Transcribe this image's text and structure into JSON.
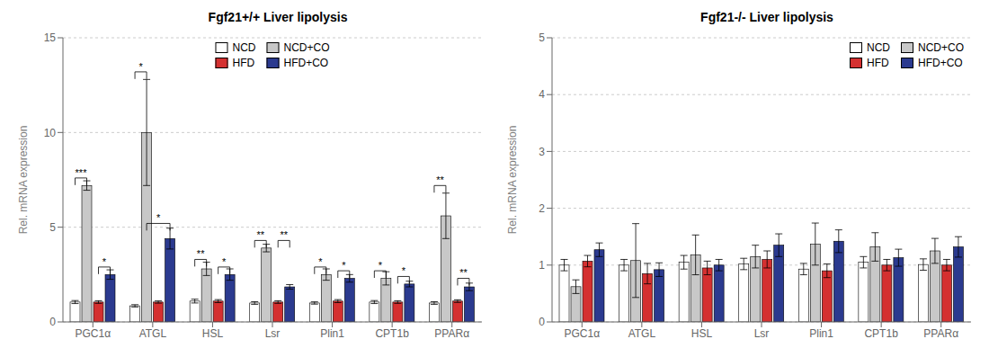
{
  "chart_data": [
    {
      "type": "bar",
      "title": "Fgf21+/+ Liver lipolysis",
      "ylabel": "Rel. mRNA expression",
      "categories": [
        "PGC1α",
        "ATGL",
        "HSL",
        "Lsr",
        "Plin1",
        "CPT1b",
        "PPARα"
      ],
      "series": [
        {
          "name": "NCD",
          "color": "#ffffff",
          "values": [
            1.05,
            0.85,
            1.1,
            1.0,
            1.0,
            1.05,
            1.0
          ],
          "errors": [
            0.08,
            0.06,
            0.1,
            0.07,
            0.06,
            0.08,
            0.07
          ]
        },
        {
          "name": "NCD+CO",
          "color": "#c8c8c8",
          "values": [
            7.2,
            10.0,
            2.8,
            3.9,
            2.5,
            2.3,
            5.6
          ],
          "errors": [
            0.25,
            2.8,
            0.35,
            0.2,
            0.3,
            0.35,
            1.2
          ]
        },
        {
          "name": "HFD",
          "color": "#d43030",
          "values": [
            1.05,
            1.05,
            1.1,
            1.05,
            1.1,
            1.05,
            1.1
          ],
          "errors": [
            0.07,
            0.06,
            0.08,
            0.07,
            0.08,
            0.07,
            0.07
          ]
        },
        {
          "name": "HFD+CO",
          "color": "#2b3a8f",
          "values": [
            2.5,
            4.4,
            2.5,
            1.85,
            2.3,
            2.0,
            1.85
          ],
          "errors": [
            0.25,
            0.55,
            0.3,
            0.12,
            0.2,
            0.15,
            0.2
          ]
        }
      ],
      "ylim": [
        0,
        15
      ],
      "yticks": [
        0,
        5,
        10,
        15
      ],
      "legend": "upper center",
      "annotations": [
        {
          "category": "PGC1α",
          "from": "NCD",
          "to": "NCD+CO",
          "y": 7.6,
          "text": "***"
        },
        {
          "category": "PGC1α",
          "from": "HFD",
          "to": "HFD+CO",
          "y": 2.9,
          "text": "*"
        },
        {
          "category": "ATGL",
          "from": "NCD",
          "to": "NCD+CO",
          "y": 13.2,
          "text": "*"
        },
        {
          "category": "ATGL",
          "from": "NCD+CO",
          "to": "HFD+CO",
          "y": 5.2,
          "text": "*"
        },
        {
          "category": "HSL",
          "from": "NCD",
          "to": "NCD+CO",
          "y": 3.3,
          "text": "**"
        },
        {
          "category": "HSL",
          "from": "HFD",
          "to": "HFD+CO",
          "y": 2.9,
          "text": "*"
        },
        {
          "category": "Lsr",
          "from": "NCD",
          "to": "NCD+CO",
          "y": 4.3,
          "text": "**"
        },
        {
          "category": "Lsr",
          "from": "HFD",
          "to": "HFD+CO",
          "y": 4.3,
          "text": "**"
        },
        {
          "category": "Plin1",
          "from": "NCD",
          "to": "NCD+CO",
          "y": 2.9,
          "text": "*"
        },
        {
          "category": "Plin1",
          "from": "HFD",
          "to": "HFD+CO",
          "y": 2.7,
          "text": "*"
        },
        {
          "category": "CPT1b",
          "from": "NCD",
          "to": "NCD+CO",
          "y": 2.7,
          "text": "*"
        },
        {
          "category": "CPT1b",
          "from": "HFD",
          "to": "HFD+CO",
          "y": 2.4,
          "text": "*"
        },
        {
          "category": "PPARα",
          "from": "NCD",
          "to": "NCD+CO",
          "y": 7.2,
          "text": "**"
        },
        {
          "category": "PPARα",
          "from": "HFD",
          "to": "HFD+CO",
          "y": 2.3,
          "text": "**"
        }
      ]
    },
    {
      "type": "bar",
      "title": "Fgf21-/- Liver lipolysis",
      "ylabel": "Rel. mRNA expression",
      "categories": [
        "PGC1α",
        "ATGL",
        "HSL",
        "Lsr",
        "Plin1",
        "CPT1b",
        "PPARα"
      ],
      "series": [
        {
          "name": "NCD",
          "color": "#ffffff",
          "values": [
            1.0,
            1.0,
            1.05,
            1.02,
            0.93,
            1.05,
            1.01
          ],
          "errors": [
            0.1,
            0.1,
            0.12,
            0.1,
            0.1,
            0.1,
            0.1
          ]
        },
        {
          "name": "NCD+CO",
          "color": "#c8c8c8",
          "values": [
            0.62,
            1.08,
            1.18,
            1.15,
            1.37,
            1.32,
            1.25
          ],
          "errors": [
            0.12,
            0.65,
            0.35,
            0.2,
            0.37,
            0.25,
            0.22
          ]
        },
        {
          "name": "HFD",
          "color": "#d43030",
          "values": [
            1.07,
            0.85,
            0.95,
            1.1,
            0.9,
            1.0,
            1.0
          ],
          "errors": [
            0.1,
            0.18,
            0.12,
            0.15,
            0.12,
            0.1,
            0.1
          ]
        },
        {
          "name": "HFD+CO",
          "color": "#2b3a8f",
          "values": [
            1.27,
            0.92,
            1.0,
            1.35,
            1.42,
            1.13,
            1.32
          ],
          "errors": [
            0.12,
            0.12,
            0.1,
            0.2,
            0.2,
            0.15,
            0.18
          ]
        }
      ],
      "ylim": [
        0,
        5
      ],
      "yticks": [
        0,
        1,
        2,
        3,
        4,
        5
      ],
      "legend": "upper right"
    }
  ]
}
